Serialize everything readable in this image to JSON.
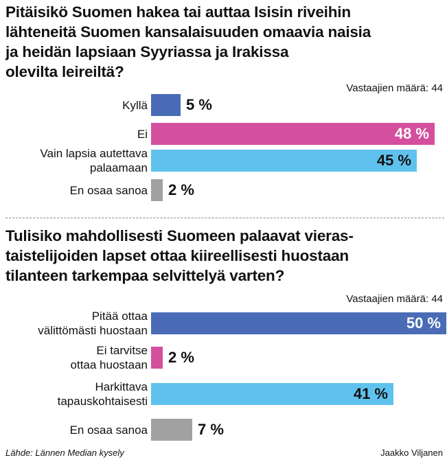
{
  "chart_data": [
    {
      "type": "bar",
      "title": "Pitäisikö Suomen hakea tai auttaa Isisin riveihin\nlähteneitä Suomen kansalaisuuden omaavia naisia\nja heidän lapsiaan Syyriassa ja Irakissa\nolevilta leireiltä?",
      "respondents": "Vastaajien määrä: 44",
      "categories": [
        "Kyllä",
        "Ei",
        "Vain lapsia autettava\npalaamaan",
        "En osaa sanoa"
      ],
      "values": [
        5,
        48,
        45,
        2
      ],
      "labels": [
        "5 %",
        "48 %",
        "45 %",
        "2 %"
      ],
      "colors": [
        "#4a6cb6",
        "#d44f9e",
        "#5fc2ee",
        "#a1a1a1"
      ],
      "xlim": [
        0,
        48
      ]
    },
    {
      "type": "bar",
      "title": "Tulisiko mahdollisesti Suomeen palaavat vieras-\ntaistelijoiden lapset ottaa kiireellisesti huostaan\ntilanteen tarkempaa selvittelyä varten?",
      "respondents": "Vastaajien määrä: 44",
      "categories": [
        "Pitää ottaa\nvälittömästi huostaan",
        "Ei tarvitse\nottaa huostaan",
        "Harkittava\ntapauskohtaisesti",
        "En osaa sanoa"
      ],
      "values": [
        50,
        2,
        41,
        7
      ],
      "labels": [
        "50 %",
        "2 %",
        "41 %",
        "7 %"
      ],
      "colors": [
        "#4a6cb6",
        "#d44f9e",
        "#5fc2ee",
        "#a1a1a1"
      ],
      "xlim": [
        0,
        50
      ]
    }
  ],
  "footer": {
    "source": "Lähde: Lännen Median kysely",
    "credit": "Jaakko Viljanen"
  }
}
